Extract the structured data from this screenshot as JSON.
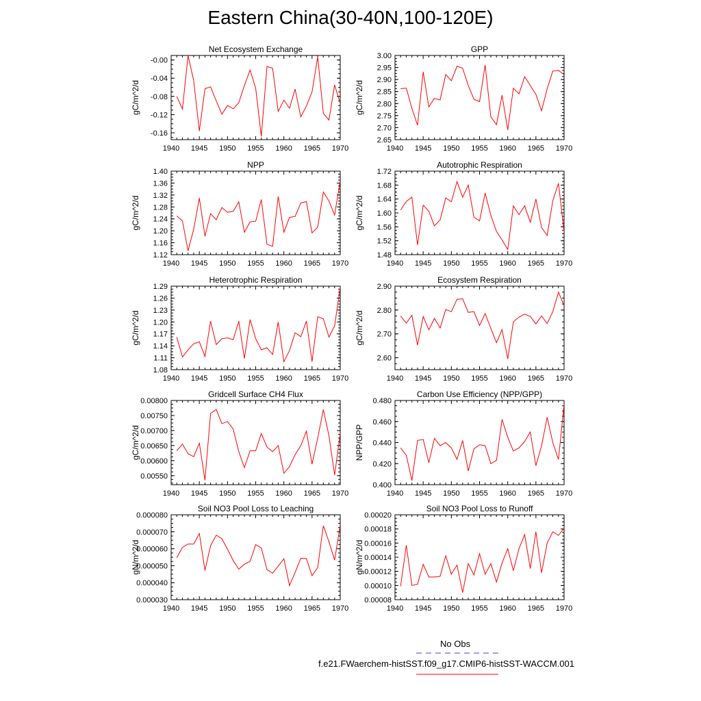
{
  "figure": {
    "title": "Eastern China(30-40N,100-120E)"
  },
  "legend": {
    "items": [
      {
        "label": "No Obs",
        "color": "#4444cc",
        "style": "dashed"
      },
      {
        "label": "f.e21.FWaerchem-histSST.f09_g17.CMIP6-histSST-WACCM.001",
        "color": "#ff0000",
        "style": "solid"
      }
    ]
  },
  "chart_data": [
    {
      "type": "line",
      "title": "Net Ecosystem Exchange",
      "ylabel": "gC/m^2/d",
      "xlim": [
        1940,
        1970
      ],
      "xticks": [
        1940,
        1945,
        1950,
        1955,
        1960,
        1965,
        1970
      ],
      "ylim": [
        -0.175,
        0.01
      ],
      "yticks": [
        -0.16,
        -0.12,
        -0.08,
        -0.04,
        -0.0
      ],
      "ytick_labels": [
        "-0.16",
        "-0.12",
        "-0.08",
        "-0.04",
        "-0.00"
      ],
      "series": [
        {
          "color": "#ff0000",
          "x": [
            1941,
            1942,
            1943,
            1944,
            1945,
            1946,
            1947,
            1948,
            1949,
            1950,
            1951,
            1952,
            1953,
            1954,
            1955,
            1956,
            1957,
            1958,
            1959,
            1960,
            1961,
            1962,
            1963,
            1964,
            1965,
            1966,
            1967,
            1968,
            1969,
            1970
          ],
          "y": [
            -0.08,
            -0.108,
            0.01,
            -0.045,
            -0.156,
            -0.063,
            -0.059,
            -0.09,
            -0.119,
            -0.1,
            -0.107,
            -0.094,
            -0.056,
            -0.022,
            -0.062,
            -0.168,
            -0.014,
            -0.018,
            -0.113,
            -0.088,
            -0.106,
            -0.064,
            -0.125,
            -0.101,
            -0.07,
            0.007,
            -0.117,
            -0.132,
            -0.055,
            -0.095
          ]
        }
      ]
    },
    {
      "type": "line",
      "title": "GPP",
      "ylabel": "gC/m^2/d",
      "xlim": [
        1940,
        1970
      ],
      "xticks": [
        1940,
        1945,
        1950,
        1955,
        1960,
        1965,
        1970
      ],
      "ylim": [
        2.65,
        3.0
      ],
      "yticks": [
        2.65,
        2.7,
        2.75,
        2.8,
        2.85,
        2.9,
        2.95,
        3.0
      ],
      "ytick_labels": [
        "2.65",
        "2.70",
        "2.75",
        "2.80",
        "2.85",
        "2.90",
        "2.95",
        "3.00"
      ],
      "series": [
        {
          "color": "#ff0000",
          "x": [
            1941,
            1942,
            1943,
            1944,
            1945,
            1946,
            1947,
            1948,
            1949,
            1950,
            1951,
            1952,
            1953,
            1954,
            1955,
            1956,
            1957,
            1958,
            1959,
            1960,
            1961,
            1962,
            1963,
            1964,
            1965,
            1966,
            1967,
            1968,
            1969,
            1970
          ],
          "y": [
            2.862,
            2.864,
            2.78,
            2.71,
            2.932,
            2.786,
            2.822,
            2.815,
            2.921,
            2.895,
            2.955,
            2.947,
            2.875,
            2.818,
            2.808,
            2.96,
            2.745,
            2.712,
            2.835,
            2.69,
            2.864,
            2.84,
            2.912,
            2.875,
            2.838,
            2.77,
            2.862,
            2.935,
            2.938,
            2.92
          ]
        }
      ]
    },
    {
      "type": "line",
      "title": "NPP",
      "ylabel": "gC/m^2/d",
      "xlim": [
        1940,
        1970
      ],
      "xticks": [
        1940,
        1945,
        1950,
        1955,
        1960,
        1965,
        1970
      ],
      "ylim": [
        1.12,
        1.4
      ],
      "yticks": [
        1.12,
        1.16,
        1.2,
        1.24,
        1.28,
        1.32,
        1.36,
        1.4
      ],
      "ytick_labels": [
        "1.12",
        "1.16",
        "1.20",
        "1.24",
        "1.28",
        "1.32",
        "1.36",
        "1.40"
      ],
      "series": [
        {
          "color": "#ff0000",
          "x": [
            1941,
            1942,
            1943,
            1944,
            1945,
            1946,
            1947,
            1948,
            1949,
            1950,
            1951,
            1952,
            1953,
            1954,
            1955,
            1956,
            1957,
            1958,
            1959,
            1960,
            1961,
            1962,
            1963,
            1964,
            1965,
            1966,
            1967,
            1968,
            1969,
            1970
          ],
          "y": [
            1.25,
            1.233,
            1.133,
            1.205,
            1.31,
            1.182,
            1.257,
            1.237,
            1.278,
            1.262,
            1.265,
            1.297,
            1.195,
            1.23,
            1.232,
            1.305,
            1.155,
            1.148,
            1.315,
            1.195,
            1.245,
            1.248,
            1.293,
            1.298,
            1.193,
            1.212,
            1.33,
            1.3,
            1.253,
            1.368
          ]
        }
      ]
    },
    {
      "type": "line",
      "title": "Autotrophic Respiration",
      "ylabel": "gC/m^2/d",
      "xlim": [
        1940,
        1970
      ],
      "xticks": [
        1940,
        1945,
        1950,
        1955,
        1960,
        1965,
        1970
      ],
      "ylim": [
        1.48,
        1.72
      ],
      "yticks": [
        1.48,
        1.52,
        1.56,
        1.6,
        1.64,
        1.68,
        1.72
      ],
      "ytick_labels": [
        "1.48",
        "1.52",
        "1.56",
        "1.60",
        "1.64",
        "1.68",
        "1.72"
      ],
      "series": [
        {
          "color": "#ff0000",
          "x": [
            1941,
            1942,
            1943,
            1944,
            1945,
            1946,
            1947,
            1948,
            1949,
            1950,
            1951,
            1952,
            1953,
            1954,
            1955,
            1956,
            1957,
            1958,
            1959,
            1960,
            1961,
            1962,
            1963,
            1964,
            1965,
            1966,
            1967,
            1968,
            1969,
            1970
          ],
          "y": [
            1.608,
            1.633,
            1.645,
            1.508,
            1.622,
            1.605,
            1.563,
            1.58,
            1.643,
            1.632,
            1.69,
            1.645,
            1.68,
            1.588,
            1.577,
            1.657,
            1.593,
            1.547,
            1.522,
            1.495,
            1.62,
            1.595,
            1.62,
            1.573,
            1.64,
            1.558,
            1.535,
            1.635,
            1.685,
            1.545
          ]
        }
      ]
    },
    {
      "type": "line",
      "title": "Heterotrophic Respiration",
      "ylabel": "gC/m^2/d",
      "xlim": [
        1940,
        1970
      ],
      "xticks": [
        1940,
        1945,
        1950,
        1955,
        1960,
        1965,
        1970
      ],
      "ylim": [
        1.08,
        1.29
      ],
      "yticks": [
        1.08,
        1.11,
        1.14,
        1.17,
        1.2,
        1.23,
        1.26,
        1.29
      ],
      "ytick_labels": [
        "1.08",
        "1.11",
        "1.14",
        "1.17",
        "1.20",
        "1.23",
        "1.26",
        "1.29"
      ],
      "series": [
        {
          "color": "#ff0000",
          "x": [
            1941,
            1942,
            1943,
            1944,
            1945,
            1946,
            1947,
            1948,
            1949,
            1950,
            1951,
            1952,
            1953,
            1954,
            1955,
            1956,
            1957,
            1958,
            1959,
            1960,
            1961,
            1962,
            1963,
            1964,
            1965,
            1966,
            1967,
            1968,
            1969,
            1970
          ],
          "y": [
            1.162,
            1.112,
            1.13,
            1.145,
            1.15,
            1.113,
            1.202,
            1.143,
            1.158,
            1.16,
            1.155,
            1.202,
            1.108,
            1.206,
            1.158,
            1.13,
            1.135,
            1.118,
            1.2,
            1.1,
            1.128,
            1.173,
            1.163,
            1.202,
            1.1,
            1.213,
            1.208,
            1.162,
            1.19,
            1.287
          ]
        }
      ]
    },
    {
      "type": "line",
      "title": "Ecosystem Respiration",
      "ylabel": "gC/m^2/d",
      "xlim": [
        1940,
        1970
      ],
      "xticks": [
        1940,
        1945,
        1950,
        1955,
        1960,
        1965,
        1970
      ],
      "ylim": [
        2.55,
        2.9
      ],
      "yticks": [
        2.6,
        2.7,
        2.8,
        2.9
      ],
      "ytick_labels": [
        "2.60",
        "2.70",
        "2.80",
        "2.90"
      ],
      "series": [
        {
          "color": "#ff0000",
          "x": [
            1941,
            1942,
            1943,
            1944,
            1945,
            1946,
            1947,
            1948,
            1949,
            1950,
            1951,
            1952,
            1953,
            1954,
            1955,
            1956,
            1957,
            1958,
            1959,
            1960,
            1961,
            1962,
            1963,
            1964,
            1965,
            1966,
            1967,
            1968,
            1969,
            1970
          ],
          "y": [
            2.775,
            2.745,
            2.778,
            2.653,
            2.773,
            2.717,
            2.765,
            2.725,
            2.802,
            2.793,
            2.845,
            2.847,
            2.79,
            2.793,
            2.735,
            2.785,
            2.723,
            2.663,
            2.718,
            2.595,
            2.75,
            2.77,
            2.783,
            2.773,
            2.742,
            2.775,
            2.743,
            2.793,
            2.875,
            2.818
          ]
        }
      ]
    },
    {
      "type": "line",
      "title": "Gridcell Surface CH4 Flux",
      "ylabel": "gC/m^2/d",
      "xlim": [
        1940,
        1970
      ],
      "xticks": [
        1940,
        1945,
        1950,
        1955,
        1960,
        1965,
        1970
      ],
      "ylim": [
        0.0052,
        0.008
      ],
      "yticks": [
        0.0055,
        0.006,
        0.0065,
        0.007,
        0.0075,
        0.008
      ],
      "ytick_labels": [
        "0.00550",
        "0.00600",
        "0.00650",
        "0.00700",
        "0.00750",
        "0.00800"
      ],
      "series": [
        {
          "color": "#ff0000",
          "x": [
            1941,
            1942,
            1943,
            1944,
            1945,
            1946,
            1947,
            1948,
            1949,
            1950,
            1951,
            1952,
            1953,
            1954,
            1955,
            1956,
            1957,
            1958,
            1959,
            1960,
            1961,
            1962,
            1963,
            1964,
            1965,
            1966,
            1967,
            1968,
            1969,
            1970
          ],
          "y": [
            0.00633,
            0.00655,
            0.00623,
            0.00613,
            0.00658,
            0.00535,
            0.00757,
            0.0077,
            0.00723,
            0.0073,
            0.00705,
            0.0063,
            0.00577,
            0.00633,
            0.00633,
            0.0069,
            0.00645,
            0.0063,
            0.0065,
            0.00558,
            0.0058,
            0.0062,
            0.0065,
            0.00698,
            0.00588,
            0.00675,
            0.0077,
            0.00683,
            0.00552,
            0.0069
          ]
        }
      ]
    },
    {
      "type": "line",
      "title": "Carbon Use Efficiency (NPP/GPP)",
      "ylabel": "NPP/GPP",
      "xlim": [
        1940,
        1970
      ],
      "xticks": [
        1940,
        1945,
        1950,
        1955,
        1960,
        1965,
        1970
      ],
      "ylim": [
        0.4,
        0.48
      ],
      "yticks": [
        0.4,
        0.42,
        0.44,
        0.46,
        0.48
      ],
      "ytick_labels": [
        "0.400",
        "0.420",
        "0.440",
        "0.460",
        "0.480"
      ],
      "series": [
        {
          "color": "#ff0000",
          "x": [
            1941,
            1942,
            1943,
            1944,
            1945,
            1946,
            1947,
            1948,
            1949,
            1950,
            1951,
            1952,
            1953,
            1954,
            1955,
            1956,
            1957,
            1958,
            1959,
            1960,
            1961,
            1962,
            1963,
            1964,
            1965,
            1966,
            1967,
            1968,
            1969,
            1970
          ],
          "y": [
            0.435,
            0.428,
            0.404,
            0.442,
            0.443,
            0.421,
            0.444,
            0.437,
            0.44,
            0.435,
            0.424,
            0.442,
            0.413,
            0.434,
            0.438,
            0.437,
            0.42,
            0.423,
            0.462,
            0.445,
            0.432,
            0.435,
            0.441,
            0.45,
            0.418,
            0.437,
            0.464,
            0.44,
            0.424,
            0.476
          ]
        }
      ]
    },
    {
      "type": "line",
      "title": "Soil NO3 Pool Loss to Leaching",
      "ylabel": "gN/m^2/d",
      "xlim": [
        1940,
        1970
      ],
      "xticks": [
        1940,
        1945,
        1950,
        1955,
        1960,
        1965,
        1970
      ],
      "ylim": [
        3e-05,
        8e-05
      ],
      "yticks": [
        3e-05,
        4e-05,
        5e-05,
        6e-05,
        7e-05,
        8e-05
      ],
      "ytick_labels": [
        "0.000030",
        "0.000040",
        "0.000050",
        "0.000060",
        "0.000070",
        "0.000080"
      ],
      "series": [
        {
          "color": "#ff0000",
          "x": [
            1941,
            1942,
            1943,
            1944,
            1945,
            1946,
            1947,
            1948,
            1949,
            1950,
            1951,
            1952,
            1953,
            1954,
            1955,
            1956,
            1957,
            1958,
            1959,
            1960,
            1961,
            1962,
            1963,
            1964,
            1965,
            1966,
            1967,
            1968,
            1969,
            1970
          ],
          "y": [
            5.47e-05,
            6.08e-05,
            6.28e-05,
            6.28e-05,
            6.9e-05,
            4.72e-05,
            6.18e-05,
            6.8e-05,
            6.59e-05,
            5.98e-05,
            5.31e-05,
            4.8e-05,
            5.09e-05,
            5.26e-05,
            6.24e-05,
            6.05e-05,
            4.77e-05,
            4.56e-05,
            4.98e-05,
            5.41e-05,
            3.83e-05,
            4.61e-05,
            5.44e-05,
            5.42e-05,
            4.41e-05,
            4.9e-05,
            7.36e-05,
            6.42e-05,
            5.33e-05,
            7.4e-05
          ]
        }
      ]
    },
    {
      "type": "line",
      "title": "Soil NO3 Pool Loss to Runoff",
      "ylabel": "gN/m^2/d",
      "xlim": [
        1940,
        1970
      ],
      "xticks": [
        1940,
        1945,
        1950,
        1955,
        1960,
        1965,
        1970
      ],
      "ylim": [
        8e-05,
        0.0002
      ],
      "yticks": [
        8e-05,
        0.0001,
        0.00012,
        0.00014,
        0.00016,
        0.00018,
        0.0002
      ],
      "ytick_labels": [
        "0.00008",
        "0.00010",
        "0.00012",
        "0.00014",
        "0.00016",
        "0.00018",
        "0.00020"
      ],
      "series": [
        {
          "color": "#ff0000",
          "x": [
            1941,
            1942,
            1943,
            1944,
            1945,
            1946,
            1947,
            1948,
            1949,
            1950,
            1951,
            1952,
            1953,
            1954,
            1955,
            1956,
            1957,
            1958,
            1959,
            1960,
            1961,
            1962,
            1963,
            1964,
            1965,
            1966,
            1967,
            1968,
            1969,
            1970
          ],
          "y": [
            9.9e-05,
            0.000157,
            0.0001,
            0.000102,
            0.00013,
            0.000112,
            0.000112,
            0.000113,
            0.000142,
            0.000116,
            0.000129,
            9e-05,
            0.000131,
            0.000115,
            0.000145,
            0.000116,
            0.000131,
            0.000105,
            0.000132,
            0.000152,
            0.000121,
            0.000152,
            0.000172,
            0.000124,
            0.000176,
            0.000118,
            0.00016,
            0.000176,
            0.000171,
            0.000181
          ]
        }
      ]
    }
  ]
}
